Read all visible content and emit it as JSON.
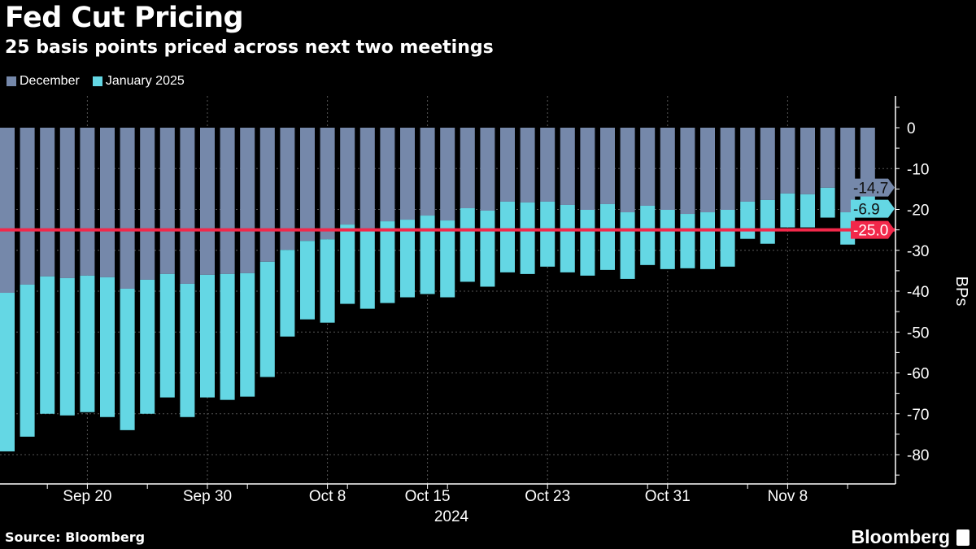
{
  "colors": {
    "december": "#7588aa",
    "january": "#64d7e4",
    "reference": "#f2284a",
    "background": "#000000"
  },
  "chart_data": {
    "type": "bar",
    "stacked": true,
    "title": "Fed Cut Pricing",
    "subtitle": "25 basis points priced across next two meetings",
    "ylabel": "BPs",
    "xlabel": "2024",
    "ylim": [
      -87,
      7
    ],
    "yticks": [
      0,
      -10,
      -20,
      -30,
      -40,
      -50,
      -60,
      -70,
      -80
    ],
    "y_axis_side": "right",
    "grid": true,
    "legend": "top-left",
    "categories": [
      "Sep 16",
      "Sep 17",
      "Sep 18",
      "Sep 19",
      "Sep 20",
      "Sep 23",
      "Sep 24",
      "Sep 25",
      "Sep 26",
      "Sep 27",
      "Sep 30",
      "Oct 1",
      "Oct 2",
      "Oct 3",
      "Oct 4",
      "Oct 7",
      "Oct 8",
      "Oct 9",
      "Oct 10",
      "Oct 11",
      "Oct 14",
      "Oct 15",
      "Oct 16",
      "Oct 17",
      "Oct 18",
      "Oct 21",
      "Oct 22",
      "Oct 23",
      "Oct 24",
      "Oct 25",
      "Oct 28",
      "Oct 29",
      "Oct 30",
      "Oct 31",
      "Nov 1",
      "Nov 4",
      "Nov 5",
      "Nov 6",
      "Nov 7",
      "Nov 8",
      "Nov 11",
      "Nov 12",
      "Nov 13",
      "Nov 14"
    ],
    "xtick_labels": [
      "Sep 20",
      "Sep 30",
      "Oct 8",
      "Oct 15",
      "Oct 23",
      "Oct 31",
      "Nov 8"
    ],
    "series": [
      {
        "name": "December",
        "values": [
          -40.4,
          -38.4,
          -36.4,
          -36.8,
          -36.2,
          -36.6,
          -39.4,
          -37.2,
          -35.8,
          -38.2,
          -36.0,
          -35.8,
          -35.6,
          -32.8,
          -29.9,
          -27.7,
          -27.3,
          -23.7,
          -25.1,
          -22.9,
          -22.5,
          -21.5,
          -22.7,
          -19.7,
          -20.3,
          -18.1,
          -18.3,
          -18.1,
          -18.9,
          -20.1,
          -18.7,
          -20.7,
          -19.1,
          -20.1,
          -21.1,
          -20.7,
          -20.1,
          -18.1,
          -17.7,
          -16.1,
          -16.3,
          -14.7,
          -20.7,
          -14.7
        ]
      },
      {
        "name": "January 2025",
        "values": [
          -38.8,
          -37.2,
          -33.6,
          -33.6,
          -33.4,
          -34.2,
          -34.6,
          -32.8,
          -30.2,
          -32.6,
          -30.0,
          -30.8,
          -30.2,
          -28.2,
          -21.2,
          -19.2,
          -20.4,
          -19.4,
          -19.2,
          -20.0,
          -19.0,
          -19.2,
          -18.8,
          -18.0,
          -18.6,
          -17.3,
          -17.5,
          -15.9,
          -16.5,
          -16.1,
          -16.1,
          -16.3,
          -14.5,
          -14.5,
          -13.3,
          -13.9,
          -13.9,
          -9.1,
          -10.7,
          -8.3,
          -8.1,
          -7.3,
          -7.9,
          -6.9
        ]
      }
    ],
    "reference_line": {
      "value": -25.0,
      "label": "-25.0"
    },
    "last_value_labels": {
      "december": "-14.7",
      "january": "-6.9"
    }
  },
  "footer": {
    "source": "Source: Bloomberg",
    "logo": "Bloomberg"
  }
}
